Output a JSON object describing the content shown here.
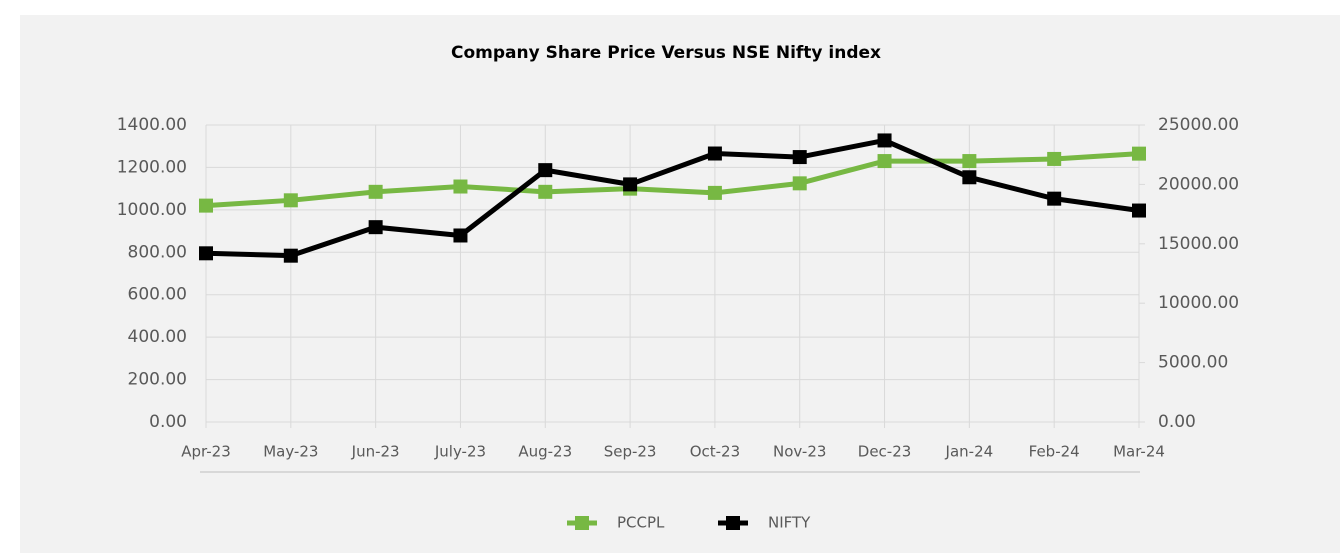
{
  "chart_data": {
    "type": "line",
    "title": "Company Share Price Versus NSE Nifty index",
    "categories": [
      "Apr-23",
      "May-23",
      "Jun-23",
      "July-23",
      "Aug-23",
      "Sep-23",
      "Oct-23",
      "Nov-23",
      "Dec-23",
      "Jan-24",
      "Feb-24",
      "Mar-24"
    ],
    "series": [
      {
        "name": "PCCPL",
        "color": "#77b843",
        "values": [
          1020,
          1045,
          1085,
          1110,
          1085,
          1100,
          1080,
          1125,
          1230,
          1230,
          1240,
          1265
        ]
      },
      {
        "name": "NIFTY",
        "color": "#000000",
        "axis": "y2",
        "values": [
          14200,
          14000,
          16400,
          15700,
          21200,
          20000,
          22600,
          22300,
          23700,
          20600,
          18800,
          17800
        ]
      }
    ],
    "ylim": [
      0,
      1400
    ],
    "yticks": [
      {
        "value": 0,
        "label": "0.00"
      },
      {
        "value": 200,
        "label": "200.00"
      },
      {
        "value": 400,
        "label": "400.00"
      },
      {
        "value": 600,
        "label": "600.00"
      },
      {
        "value": 800,
        "label": "800.00"
      },
      {
        "value": 1000,
        "label": "1000.00"
      },
      {
        "value": 1200,
        "label": "1200.00"
      },
      {
        "value": 1400,
        "label": "1400.00"
      }
    ],
    "y2lim": [
      0,
      25000
    ],
    "y2ticks": [
      {
        "value": 0,
        "label": "0.00"
      },
      {
        "value": 5000,
        "label": "5000.00"
      },
      {
        "value": 10000,
        "label": "10000.00"
      },
      {
        "value": 15000,
        "label": "15000.00"
      },
      {
        "value": 20000,
        "label": "20000.00"
      },
      {
        "value": 25000,
        "label": "25000.00"
      }
    ],
    "grid": true,
    "legend": "bottom"
  }
}
